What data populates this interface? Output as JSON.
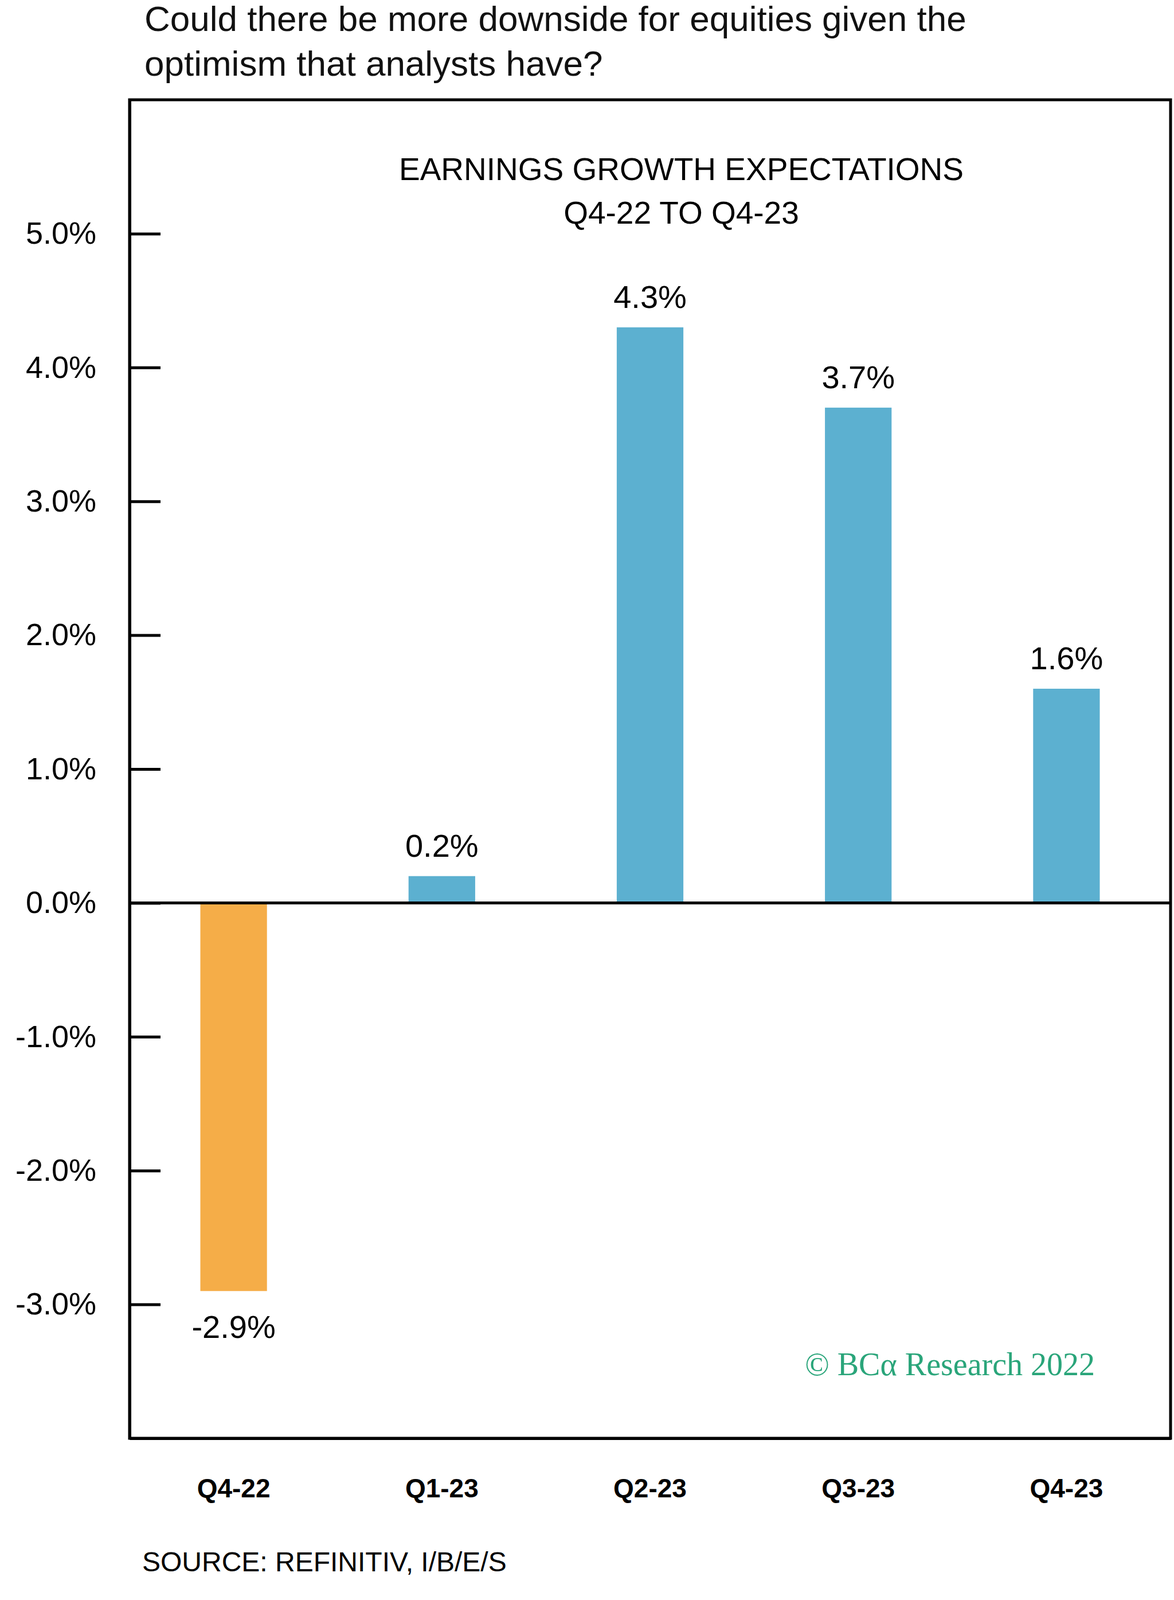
{
  "chart_data": {
    "type": "bar",
    "subtitle": [
      "Could there be more downside for equities given the",
      "optimism that analysts have?"
    ],
    "title": [
      "EARNINGS GROWTH EXPECTATIONS",
      "Q4-22 TO Q4-23"
    ],
    "categories": [
      "Q4-22",
      "Q1-23",
      "Q2-23",
      "Q3-23",
      "Q4-23"
    ],
    "values": [
      -2.9,
      0.2,
      4.3,
      3.7,
      1.6
    ],
    "value_labels": [
      "-2.9%",
      "0.2%",
      "4.3%",
      "3.7%",
      "1.6%"
    ],
    "colors": [
      "#f5ad48",
      "#5cb0d0",
      "#5cb0d0",
      "#5cb0d0",
      "#5cb0d0"
    ],
    "data_labels": true,
    "grid": false,
    "ylim": [
      -4,
      6
    ],
    "yticks": [
      {
        "value": -3,
        "label": "-3.0%"
      },
      {
        "value": -2,
        "label": "-2.0%"
      },
      {
        "value": -1,
        "label": "-1.0%"
      },
      {
        "value": 0,
        "label": "0.0%"
      },
      {
        "value": 1,
        "label": "1.0%"
      },
      {
        "value": 2,
        "label": "2.0%"
      },
      {
        "value": 3,
        "label": "3.0%"
      },
      {
        "value": 4,
        "label": "4.0%"
      },
      {
        "value": 5,
        "label": "5.0%"
      }
    ],
    "annotations": [
      "© BCα Research 2022",
      "SOURCE: REFINITIV, I/B/E/S"
    ]
  }
}
